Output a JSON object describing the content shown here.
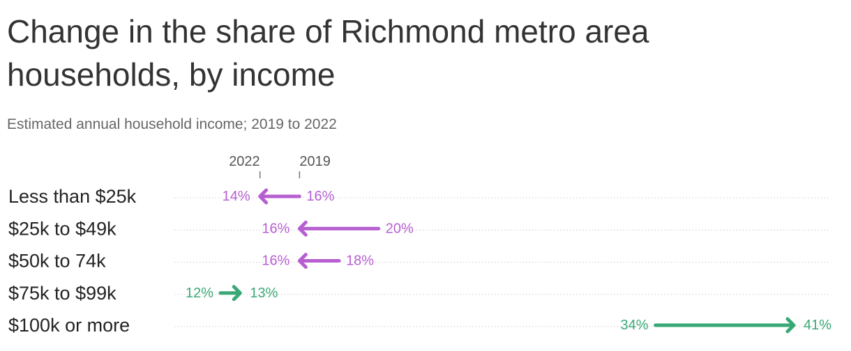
{
  "title": "Change in the share of Richmond metro area households, by income",
  "subtitle": "Estimated annual household income; 2019 to 2022",
  "colors": {
    "decrease": "#b75fd1",
    "increase": "#3aa876",
    "gridline": "#cccccc",
    "tick": "#777777"
  },
  "chart_data": {
    "type": "arrow",
    "start_label": "2019",
    "end_label": "2022",
    "categories": [
      "Less than $25k",
      "$25k to $49k",
      "$50k to 74k",
      "$75k to $99k",
      "$100k or more"
    ],
    "series": [
      {
        "name": "2019",
        "values": [
          16,
          20,
          18,
          12,
          34
        ]
      },
      {
        "name": "2022",
        "values": [
          14,
          16,
          16,
          13,
          41
        ]
      }
    ],
    "value_suffix": "%",
    "xlim": [
      12,
      41
    ]
  }
}
